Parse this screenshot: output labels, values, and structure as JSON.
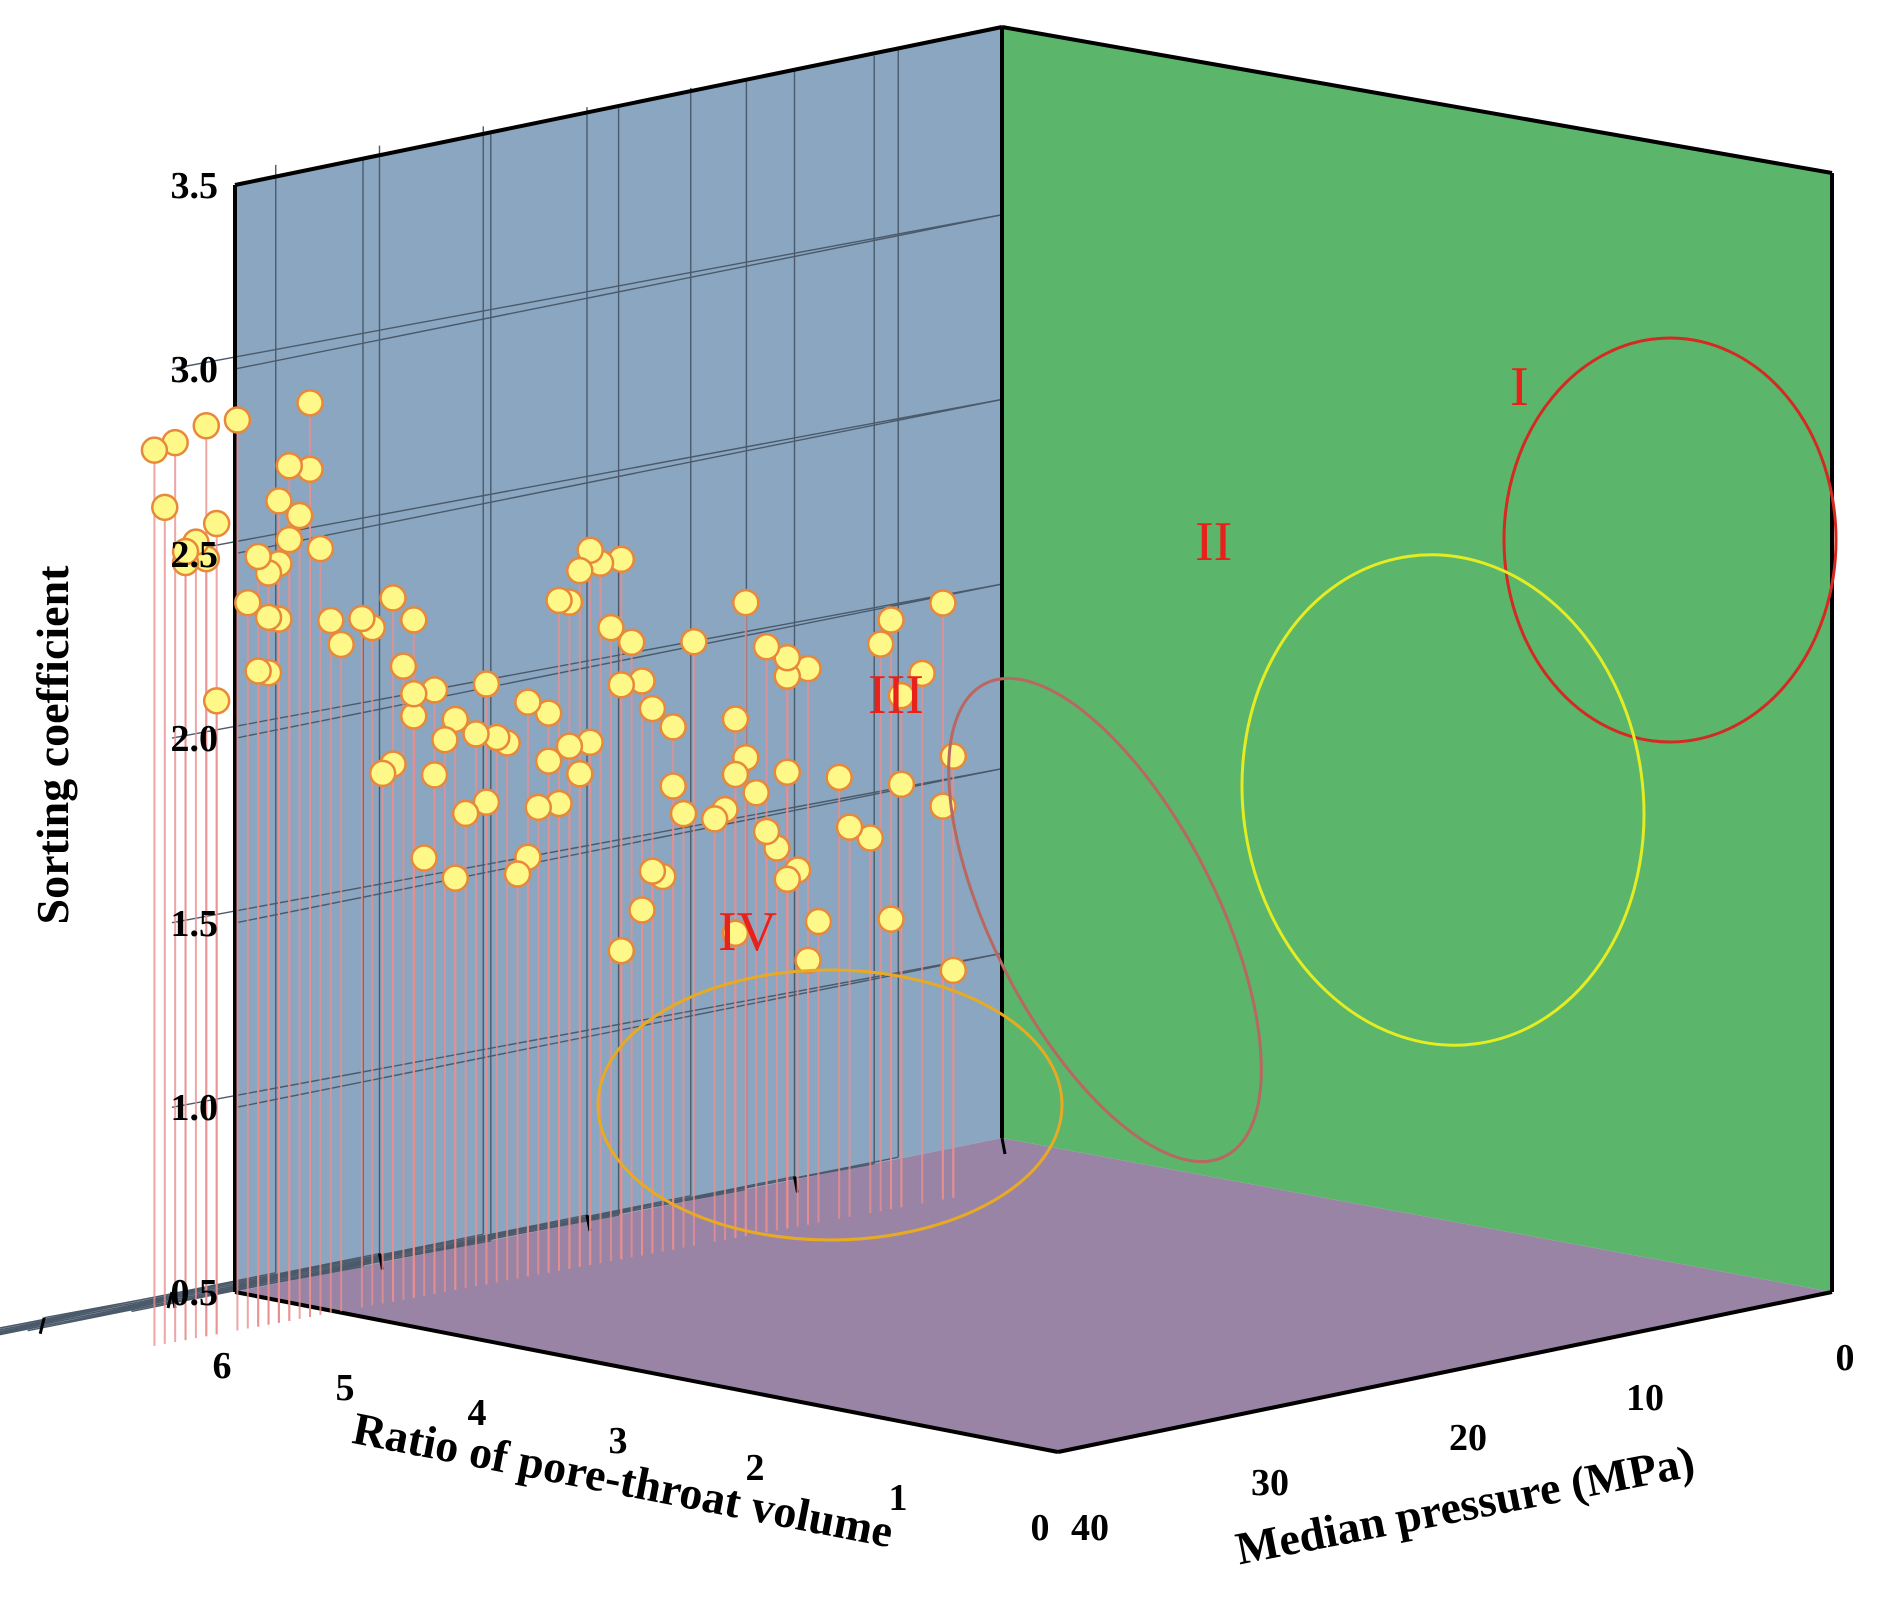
{
  "chart_data": {
    "type": "scatter3d",
    "zlabel": "Sorting coefficient",
    "xlabel": "Ratio of pore-throat volume",
    "ylabel": "Median pressure (MPa)",
    "z_ticks": [
      "0.5",
      "1.0",
      "1.5",
      "2.0",
      "2.5",
      "3.0",
      "3.5"
    ],
    "x_ticks": [
      "6",
      "5",
      "4",
      "3",
      "2",
      "1",
      "0"
    ],
    "y_ticks": [
      "0",
      "10",
      "20",
      "30",
      "40"
    ],
    "zlim": [
      0.5,
      3.5
    ],
    "xlim": [
      0,
      6
    ],
    "ylim": [
      0,
      40
    ],
    "grid": true,
    "colors": {
      "left_wall": "#8ba6c0",
      "right_wall": "#5bb56b",
      "floor": "#9a84a6",
      "marker_fill": "#fef889",
      "marker_edge": "#e8883a",
      "stem": "#e88e8e"
    },
    "clusters": [
      {
        "label": "I",
        "color": "#d42a22"
      },
      {
        "label": "II",
        "color": "#e4ec22"
      },
      {
        "label": "III",
        "color": "#b86860"
      },
      {
        "label": "IV",
        "color": "#e8aa22"
      }
    ],
    "points": [
      [
        4.8,
        0.3,
        0.94
      ],
      [
        4.3,
        0.3,
        1.09
      ],
      [
        4.15,
        0.3,
        0.94
      ],
      [
        3.9,
        0.35,
        1.06
      ],
      [
        3.65,
        0.35,
        1.24
      ],
      [
        4.15,
        0.8,
        1.26
      ],
      [
        2.65,
        0.35,
        1.19
      ],
      [
        2.6,
        0.4,
        0.98
      ],
      [
        2.55,
        0.5,
        0.75
      ],
      [
        2.7,
        0.35,
        1.41
      ],
      [
        2.25,
        0.35,
        1.38
      ],
      [
        1.8,
        0.35,
        1.29
      ],
      [
        2.25,
        0.45,
        1.93
      ],
      [
        1.8,
        0.35,
        1.79
      ],
      [
        0.3,
        39.5,
        0.98
      ],
      [
        0.3,
        39.0,
        1.43
      ],
      [
        0.3,
        39.5,
        1.56
      ],
      [
        0.3,
        38.0,
        1.8
      ],
      [
        0.3,
        37.0,
        1.51
      ],
      [
        0.3,
        36.5,
        1.15
      ],
      [
        0.3,
        35.5,
        1.38
      ],
      [
        0.3,
        34.5,
        1.42
      ],
      [
        0.3,
        36.0,
        1.9
      ],
      [
        0.3,
        36.5,
        1.96
      ],
      [
        0.3,
        37.0,
        1.75
      ],
      [
        0.3,
        39.0,
        1.98
      ],
      [
        0.3,
        34.0,
        1.56
      ],
      [
        0.3,
        33.0,
        1.18
      ],
      [
        0.3,
        32.5,
        1.08
      ],
      [
        0.3,
        32.0,
        1.33
      ],
      [
        0.3,
        31.5,
        1.31
      ],
      [
        0.3,
        31.0,
        1.4
      ],
      [
        0.3,
        30.5,
        1.45
      ],
      [
        0.3,
        30.0,
        1.56
      ],
      [
        0.3,
        31.5,
        1.6
      ],
      [
        0.3,
        29.0,
        1.19
      ],
      [
        0.3,
        31.5,
        1.86
      ],
      [
        0.3,
        32.5,
        1.87
      ],
      [
        0.3,
        31.5,
        1.91
      ],
      [
        0.3,
        30.5,
        1.95
      ],
      [
        0.3,
        29.5,
        2.08
      ],
      [
        0.3,
        29.0,
        1.77
      ],
      [
        0.3,
        29.5,
        1.66
      ],
      [
        0.3,
        29.0,
        1.62
      ],
      [
        0.3,
        28.5,
        1.53
      ],
      [
        0.3,
        28.0,
        1.51
      ],
      [
        0.3,
        27.0,
        2.0
      ],
      [
        0.3,
        26.0,
        1.62
      ],
      [
        0.3,
        26.5,
        1.54
      ],
      [
        0.3,
        25.5,
        1.38
      ],
      [
        0.3,
        25.0,
        1.4
      ],
      [
        0.3,
        24.5,
        1.3
      ],
      [
        0.3,
        23.5,
        1.2
      ],
      [
        0.3,
        26.0,
        1.78
      ],
      [
        0.3,
        25.0,
        1.84
      ],
      [
        0.3,
        24.5,
        1.92
      ],
      [
        0.3,
        23.5,
        1.92
      ],
      [
        0.3,
        24.0,
        2.03
      ],
      [
        0.3,
        23.0,
        2.08
      ],
      [
        0.3,
        23.5,
        2.26
      ],
      [
        0.3,
        22.5,
        2.26
      ],
      [
        0.3,
        22.0,
        2.3
      ],
      [
        0.3,
        21.5,
        2.25
      ],
      [
        0.3,
        21.0,
        2.17
      ],
      [
        0.3,
        20.5,
        2.18
      ],
      [
        0.3,
        22.0,
        1.78
      ],
      [
        0.3,
        21.5,
        1.7
      ],
      [
        0.3,
        21.0,
        1.78
      ],
      [
        0.3,
        20.0,
        1.75
      ],
      [
        0.3,
        20.5,
        1.63
      ],
      [
        0.3,
        19.5,
        1.63
      ],
      [
        0.3,
        19.0,
        1.5
      ],
      [
        0.3,
        18.5,
        1.46
      ],
      [
        0.3,
        20.0,
        1.88
      ],
      [
        0.3,
        19.0,
        1.92
      ],
      [
        0.3,
        18.0,
        1.82
      ],
      [
        0.3,
        17.5,
        1.84
      ],
      [
        0.3,
        17.0,
        1.67
      ],
      [
        0.3,
        16.0,
        1.65
      ],
      [
        0.3,
        15.5,
        1.48
      ],
      [
        0.3,
        17.0,
        1.99
      ],
      [
        0.3,
        16.5,
        1.86
      ],
      [
        0.3,
        15.5,
        1.91
      ],
      [
        0.3,
        15.0,
        1.86
      ],
      [
        0.3,
        14.5,
        1.77
      ],
      [
        0.3,
        14.0,
        1.55
      ],
      [
        0.3,
        14.5,
        2.0
      ],
      [
        0.3,
        13.5,
        1.94
      ],
      [
        0.3,
        12.5,
        1.82
      ],
      [
        0.3,
        13.5,
        2.2
      ],
      [
        0.3,
        12.5,
        2.27
      ],
      [
        0.3,
        11.5,
        2.2
      ],
      [
        0.3,
        11.0,
        2.23
      ],
      [
        0.3,
        10.0,
        2.17
      ],
      [
        0.3,
        9.5,
        2.24
      ],
      [
        0.3,
        13.0,
        2.08
      ],
      [
        0.3,
        13.5,
        2.0
      ],
      [
        0.3,
        12.0,
        1.8
      ],
      [
        0.3,
        9.0,
        2.44
      ],
      [
        0.3,
        8.5,
        2.66
      ],
      [
        0.3,
        8.5,
        2.84
      ],
      [
        0.3,
        8.0,
        2.54
      ],
      [
        0.3,
        7.5,
        2.68
      ],
      [
        0.3,
        7.5,
        2.48
      ],
      [
        0.3,
        7.0,
        2.59
      ],
      [
        0.3,
        7.0,
        2.42
      ],
      [
        0.3,
        6.5,
        2.4
      ],
      [
        0.3,
        6.5,
        2.28
      ],
      [
        0.3,
        7.0,
        2.27
      ],
      [
        0.3,
        6.0,
        2.45
      ],
      [
        0.3,
        6.5,
        2.13
      ],
      [
        0.3,
        6.0,
        2.14
      ],
      [
        0.3,
        5.5,
        2.33
      ],
      [
        0.3,
        5.0,
        2.83
      ],
      [
        0.3,
        4.0,
        2.56
      ],
      [
        0.3,
        3.5,
        2.83
      ],
      [
        0.3,
        3.5,
        2.47
      ],
      [
        0.3,
        3.0,
        2.52
      ],
      [
        0.3,
        2.5,
        2.47
      ],
      [
        0.3,
        2.0,
        2.8
      ],
      [
        0.3,
        2.5,
        2.5
      ],
      [
        0.3,
        1.5,
        2.63
      ],
      [
        0.3,
        4.0,
        2.08
      ],
      [
        0.3,
        1.0,
        2.79
      ]
    ]
  }
}
